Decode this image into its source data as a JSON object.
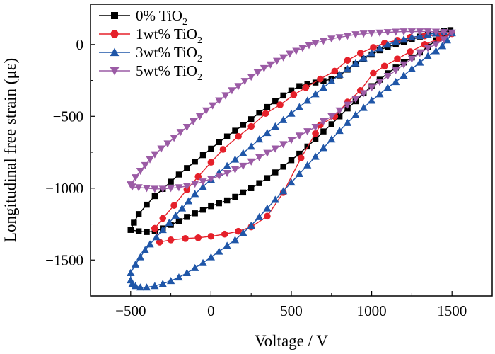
{
  "chart_data": {
    "type": "line",
    "xlabel": "Voltage / V",
    "ylabel": "Longitudinal free strain (με)",
    "xlim": [
      -750,
      1750
    ],
    "ylim": [
      -1750,
      280
    ],
    "xticks": [
      -500,
      0,
      500,
      1000,
      1500
    ],
    "xtick_labels": [
      "−500",
      "0",
      "500",
      "1000",
      "1500"
    ],
    "yticks": [
      0,
      -500,
      -1000,
      -1500
    ],
    "ytick_labels": [
      "0",
      "−500",
      "−1000",
      "−1500"
    ],
    "grid": false,
    "legend_position": "top-left",
    "series": [
      {
        "name_main": "0% TiO",
        "name_sub": "2",
        "color": "#000000",
        "marker": "square",
        "values": [
          [
            -500,
            -1290
          ],
          [
            -450,
            -1300
          ],
          [
            -400,
            -1305
          ],
          [
            -350,
            -1300
          ],
          [
            -300,
            -1280
          ],
          [
            -250,
            -1255
          ],
          [
            -200,
            -1230
          ],
          [
            -150,
            -1200
          ],
          [
            -100,
            -1175
          ],
          [
            -50,
            -1150
          ],
          [
            0,
            -1125
          ],
          [
            50,
            -1105
          ],
          [
            100,
            -1085
          ],
          [
            150,
            -1060
          ],
          [
            200,
            -1030
          ],
          [
            250,
            -1000
          ],
          [
            300,
            -965
          ],
          [
            350,
            -930
          ],
          [
            400,
            -890
          ],
          [
            450,
            -850
          ],
          [
            500,
            -805
          ],
          [
            550,
            -760
          ],
          [
            600,
            -710
          ],
          [
            650,
            -660
          ],
          [
            700,
            -605
          ],
          [
            750,
            -555
          ],
          [
            800,
            -500
          ],
          [
            850,
            -445
          ],
          [
            900,
            -395
          ],
          [
            950,
            -340
          ],
          [
            1000,
            -290
          ],
          [
            1050,
            -245
          ],
          [
            1100,
            -200
          ],
          [
            1150,
            -160
          ],
          [
            1200,
            -125
          ],
          [
            1250,
            -90
          ],
          [
            1300,
            -55
          ],
          [
            1350,
            -15
          ],
          [
            1400,
            30
          ],
          [
            1450,
            75
          ],
          [
            1490,
            100
          ],
          [
            1450,
            95
          ],
          [
            1400,
            85
          ],
          [
            1350,
            70
          ],
          [
            1300,
            55
          ],
          [
            1250,
            35
          ],
          [
            1200,
            15
          ],
          [
            1150,
            0
          ],
          [
            1100,
            -15
          ],
          [
            1050,
            -40
          ],
          [
            1000,
            -70
          ],
          [
            950,
            -100
          ],
          [
            900,
            -135
          ],
          [
            850,
            -175
          ],
          [
            800,
            -215
          ],
          [
            750,
            -240
          ],
          [
            700,
            -255
          ],
          [
            650,
            -265
          ],
          [
            600,
            -275
          ],
          [
            550,
            -290
          ],
          [
            500,
            -320
          ],
          [
            450,
            -355
          ],
          [
            400,
            -395
          ],
          [
            350,
            -435
          ],
          [
            300,
            -475
          ],
          [
            250,
            -520
          ],
          [
            200,
            -560
          ],
          [
            150,
            -600
          ],
          [
            100,
            -640
          ],
          [
            50,
            -680
          ],
          [
            0,
            -725
          ],
          [
            -50,
            -770
          ],
          [
            -100,
            -815
          ],
          [
            -150,
            -860
          ],
          [
            -200,
            -905
          ],
          [
            -250,
            -955
          ],
          [
            -300,
            -1005
          ],
          [
            -350,
            -1055
          ],
          [
            -400,
            -1115
          ],
          [
            -450,
            -1180
          ],
          [
            -480,
            -1240
          ],
          [
            -500,
            -1290
          ]
        ]
      },
      {
        "name_main": "1wt% TiO",
        "name_sub": "2",
        "color": "#e5202a",
        "marker": "circle",
        "values": [
          [
            -350,
            -1280
          ],
          [
            -300,
            -1210
          ],
          [
            -230,
            -1120
          ],
          [
            -150,
            -1010
          ],
          [
            -80,
            -920
          ],
          [
            0,
            -820
          ],
          [
            75,
            -730
          ],
          [
            170,
            -640
          ],
          [
            250,
            -570
          ],
          [
            340,
            -480
          ],
          [
            430,
            -420
          ],
          [
            515,
            -350
          ],
          [
            590,
            -300
          ],
          [
            680,
            -240
          ],
          [
            770,
            -185
          ],
          [
            850,
            -110
          ],
          [
            930,
            -60
          ],
          [
            1010,
            -20
          ],
          [
            1080,
            10
          ],
          [
            1160,
            30
          ],
          [
            1240,
            50
          ],
          [
            1330,
            60
          ],
          [
            1420,
            65
          ],
          [
            1500,
            75
          ],
          [
            1420,
            40
          ],
          [
            1330,
            0
          ],
          [
            1240,
            -50
          ],
          [
            1160,
            -100
          ],
          [
            1080,
            -150
          ],
          [
            1010,
            -200
          ],
          [
            930,
            -320
          ],
          [
            850,
            -400
          ],
          [
            770,
            -500
          ],
          [
            680,
            -560
          ],
          [
            650,
            -620
          ],
          [
            560,
            -790
          ],
          [
            450,
            -1030
          ],
          [
            350,
            -1195
          ],
          [
            250,
            -1270
          ],
          [
            170,
            -1300
          ],
          [
            85,
            -1320
          ],
          [
            0,
            -1335
          ],
          [
            -80,
            -1345
          ],
          [
            -160,
            -1350
          ],
          [
            -250,
            -1360
          ],
          [
            -320,
            -1375
          ],
          [
            -350,
            -1280
          ]
        ]
      },
      {
        "name_main": "3wt% TiO",
        "name_sub": "2",
        "color": "#1f56a8",
        "marker": "triangle-up",
        "values": [
          [
            -500,
            -1590
          ],
          [
            -470,
            -1530
          ],
          [
            -440,
            -1480
          ],
          [
            -410,
            -1430
          ],
          [
            -380,
            -1390
          ],
          [
            -340,
            -1340
          ],
          [
            -300,
            -1290
          ],
          [
            -260,
            -1240
          ],
          [
            -220,
            -1190
          ],
          [
            -180,
            -1140
          ],
          [
            -140,
            -1090
          ],
          [
            -100,
            -1040
          ],
          [
            -50,
            -990
          ],
          [
            0,
            -940
          ],
          [
            50,
            -890
          ],
          [
            100,
            -845
          ],
          [
            150,
            -800
          ],
          [
            200,
            -755
          ],
          [
            250,
            -710
          ],
          [
            300,
            -660
          ],
          [
            350,
            -615
          ],
          [
            400,
            -570
          ],
          [
            450,
            -525
          ],
          [
            500,
            -480
          ],
          [
            550,
            -435
          ],
          [
            600,
            -390
          ],
          [
            650,
            -345
          ],
          [
            700,
            -300
          ],
          [
            750,
            -255
          ],
          [
            800,
            -210
          ],
          [
            850,
            -170
          ],
          [
            900,
            -130
          ],
          [
            950,
            -95
          ],
          [
            1000,
            -60
          ],
          [
            1050,
            -25
          ],
          [
            1100,
            0
          ],
          [
            1150,
            20
          ],
          [
            1200,
            35
          ],
          [
            1250,
            50
          ],
          [
            1300,
            60
          ],
          [
            1350,
            70
          ],
          [
            1400,
            78
          ],
          [
            1450,
            85
          ],
          [
            1500,
            80
          ],
          [
            1470,
            30
          ],
          [
            1440,
            -10
          ],
          [
            1400,
            -45
          ],
          [
            1350,
            -80
          ],
          [
            1300,
            -125
          ],
          [
            1250,
            -170
          ],
          [
            1200,
            -215
          ],
          [
            1150,
            -260
          ],
          [
            1100,
            -300
          ],
          [
            1050,
            -345
          ],
          [
            1000,
            -390
          ],
          [
            950,
            -440
          ],
          [
            900,
            -490
          ],
          [
            850,
            -545
          ],
          [
            800,
            -600
          ],
          [
            750,
            -660
          ],
          [
            700,
            -720
          ],
          [
            650,
            -780
          ],
          [
            600,
            -840
          ],
          [
            550,
            -900
          ],
          [
            500,
            -960
          ],
          [
            450,
            -1020
          ],
          [
            400,
            -1080
          ],
          [
            350,
            -1140
          ],
          [
            300,
            -1200
          ],
          [
            250,
            -1260
          ],
          [
            200,
            -1310
          ],
          [
            150,
            -1360
          ],
          [
            100,
            -1400
          ],
          [
            50,
            -1440
          ],
          [
            0,
            -1480
          ],
          [
            -50,
            -1520
          ],
          [
            -100,
            -1555
          ],
          [
            -150,
            -1590
          ],
          [
            -200,
            -1620
          ],
          [
            -250,
            -1645
          ],
          [
            -300,
            -1665
          ],
          [
            -350,
            -1680
          ],
          [
            -400,
            -1690
          ],
          [
            -440,
            -1690
          ],
          [
            -470,
            -1680
          ],
          [
            -490,
            -1665
          ],
          [
            -500,
            -1640
          ],
          [
            -500,
            -1590
          ]
        ]
      },
      {
        "name_main": "5wt% TiO",
        "name_sub": "2",
        "color": "#9b5ba5",
        "marker": "triangle-down",
        "values": [
          [
            -500,
            -975
          ],
          [
            -470,
            -925
          ],
          [
            -440,
            -880
          ],
          [
            -410,
            -840
          ],
          [
            -380,
            -800
          ],
          [
            -350,
            -765
          ],
          [
            -310,
            -725
          ],
          [
            -270,
            -690
          ],
          [
            -230,
            -650
          ],
          [
            -190,
            -610
          ],
          [
            -150,
            -575
          ],
          [
            -110,
            -535
          ],
          [
            -70,
            -500
          ],
          [
            -30,
            -460
          ],
          [
            10,
            -425
          ],
          [
            50,
            -390
          ],
          [
            90,
            -355
          ],
          [
            130,
            -320
          ],
          [
            170,
            -290
          ],
          [
            210,
            -255
          ],
          [
            250,
            -225
          ],
          [
            290,
            -195
          ],
          [
            330,
            -165
          ],
          [
            370,
            -140
          ],
          [
            410,
            -115
          ],
          [
            450,
            -90
          ],
          [
            490,
            -65
          ],
          [
            530,
            -45
          ],
          [
            570,
            -25
          ],
          [
            610,
            -5
          ],
          [
            650,
            10
          ],
          [
            700,
            25
          ],
          [
            750,
            40
          ],
          [
            800,
            50
          ],
          [
            850,
            60
          ],
          [
            900,
            70
          ],
          [
            950,
            75
          ],
          [
            1000,
            80
          ],
          [
            1050,
            82
          ],
          [
            1100,
            85
          ],
          [
            1150,
            88
          ],
          [
            1200,
            90
          ],
          [
            1250,
            90
          ],
          [
            1300,
            90
          ],
          [
            1350,
            90
          ],
          [
            1400,
            88
          ],
          [
            1450,
            85
          ],
          [
            1500,
            82
          ],
          [
            1450,
            35
          ],
          [
            1400,
            0
          ],
          [
            1350,
            -25
          ],
          [
            1300,
            -60
          ],
          [
            1250,
            -100
          ],
          [
            1200,
            -140
          ],
          [
            1150,
            -180
          ],
          [
            1100,
            -220
          ],
          [
            1050,
            -260
          ],
          [
            1000,
            -300
          ],
          [
            950,
            -340
          ],
          [
            900,
            -380
          ],
          [
            850,
            -420
          ],
          [
            800,
            -460
          ],
          [
            750,
            -500
          ],
          [
            700,
            -535
          ],
          [
            650,
            -575
          ],
          [
            600,
            -605
          ],
          [
            550,
            -635
          ],
          [
            500,
            -665
          ],
          [
            450,
            -695
          ],
          [
            400,
            -725
          ],
          [
            350,
            -755
          ],
          [
            300,
            -785
          ],
          [
            250,
            -815
          ],
          [
            200,
            -845
          ],
          [
            150,
            -870
          ],
          [
            100,
            -895
          ],
          [
            50,
            -915
          ],
          [
            0,
            -935
          ],
          [
            -50,
            -955
          ],
          [
            -100,
            -970
          ],
          [
            -150,
            -985
          ],
          [
            -200,
            -995
          ],
          [
            -250,
            -1000
          ],
          [
            -300,
            -1005
          ],
          [
            -350,
            -1005
          ],
          [
            -400,
            -1000
          ],
          [
            -450,
            -995
          ],
          [
            -490,
            -990
          ],
          [
            -500,
            -975
          ]
        ]
      }
    ]
  }
}
